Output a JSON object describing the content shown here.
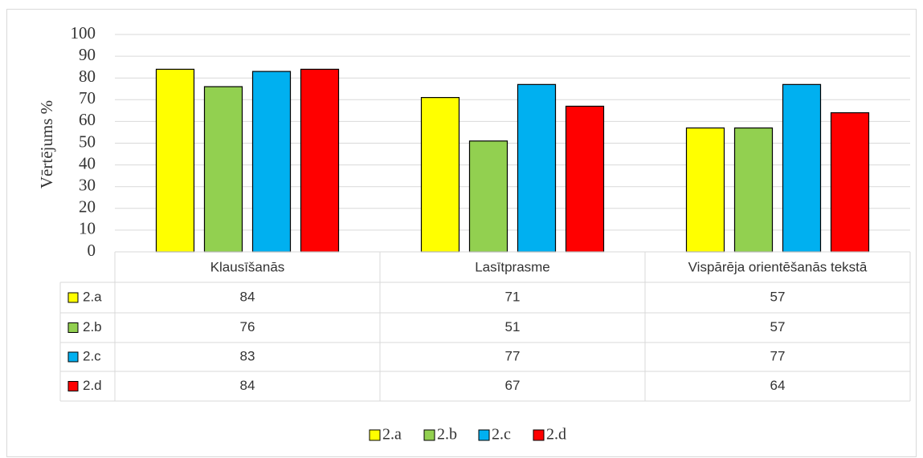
{
  "chart_data": {
    "type": "bar",
    "y_label": "Vērtējums %",
    "categories": [
      "Klausīšanās",
      "Lasītprasme",
      "Vispārēja orientēšanās tekstā"
    ],
    "series": [
      {
        "name": "2.a",
        "color": "#ffff00",
        "values": [
          84,
          71,
          57
        ]
      },
      {
        "name": "2.b",
        "color": "#92d050",
        "values": [
          76,
          51,
          57
        ]
      },
      {
        "name": "2.c",
        "color": "#00b0f0",
        "values": [
          83,
          77,
          77
        ]
      },
      {
        "name": "2.d",
        "color": "#ff0000",
        "values": [
          84,
          67,
          64
        ]
      }
    ],
    "ylim": [
      0,
      100
    ],
    "yticks": [
      0,
      10,
      20,
      30,
      40,
      50,
      60,
      70,
      80,
      90,
      100
    ],
    "grid": true,
    "data_table": true,
    "legend": "bottom"
  }
}
